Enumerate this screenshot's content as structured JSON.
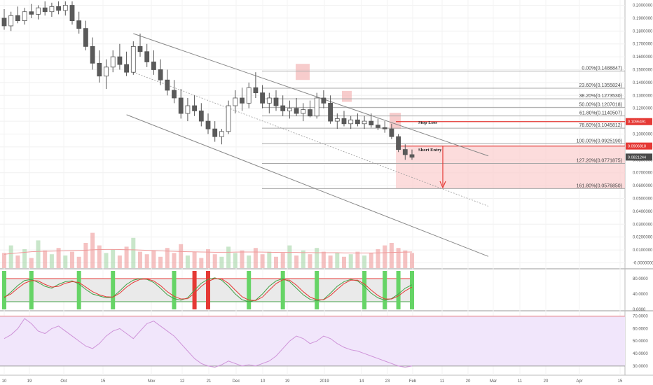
{
  "chart_data": {
    "type": "candlestick",
    "x_ticks": [
      "10",
      "19",
      "Oct",
      "15",
      "Nov",
      "12",
      "21",
      "Dec",
      "10",
      "19",
      "2019",
      "14",
      "23",
      "Feb",
      "11",
      "20",
      "Mar",
      "11",
      "20",
      "Apr",
      "15"
    ],
    "price_axis": {
      "ticks": [
        "0.2000000",
        "0.1900000",
        "0.1800000",
        "0.1700000",
        "0.1600000",
        "0.1500000",
        "0.1400000",
        "0.1300000",
        "0.1200000",
        "0.1100000",
        "0.1000000",
        "0.0900000",
        "0.0800000",
        "0.0700000",
        "0.0600000",
        "0.0500000",
        "0.0400000",
        "0.0300000",
        "0.0200000",
        "0.0100000",
        "-0.0000000"
      ],
      "ylim": [
        -0.003,
        0.203
      ]
    },
    "fib_levels": [
      {
        "label": "0.00%(0.1488847)",
        "value": 0.1488847
      },
      {
        "label": "23.60%(0.1355824)",
        "value": 0.1355824
      },
      {
        "label": "38.20%(0.1273530)",
        "value": 0.127353
      },
      {
        "label": "50.00%(0.1207018)",
        "value": 0.1207018
      },
      {
        "label": "61.80%(0.1140507)",
        "value": 0.1140507
      },
      {
        "label": "78.60%(0.1045812)",
        "value": 0.1045812
      },
      {
        "label": "100.00%(0.0925190)",
        "value": 0.092519
      },
      {
        "label": "127.20%(0.0771875)",
        "value": 0.0771875
      },
      {
        "label": "161.80%(0.0576850)",
        "value": 0.057685
      }
    ],
    "price_tags": [
      {
        "label": "0.1096491",
        "value": 0.1096491,
        "color": "#e53935"
      },
      {
        "label": "0.0906818",
        "value": 0.0906818,
        "color": "#e53935"
      },
      {
        "label": "0.0821244",
        "value": 0.0821244,
        "color": "#4a4a4a"
      }
    ],
    "annotations": {
      "stop_loss": "Stop Loss",
      "short_entry": "Short Entry"
    },
    "candles": [
      {
        "o": 0.19,
        "h": 0.197,
        "l": 0.181,
        "c": 0.184
      },
      {
        "o": 0.184,
        "h": 0.195,
        "l": 0.18,
        "c": 0.192
      },
      {
        "o": 0.192,
        "h": 0.199,
        "l": 0.186,
        "c": 0.188
      },
      {
        "o": 0.188,
        "h": 0.198,
        "l": 0.185,
        "c": 0.195
      },
      {
        "o": 0.195,
        "h": 0.201,
        "l": 0.19,
        "c": 0.193
      },
      {
        "o": 0.193,
        "h": 0.2,
        "l": 0.189,
        "c": 0.198
      },
      {
        "o": 0.198,
        "h": 0.203,
        "l": 0.192,
        "c": 0.195
      },
      {
        "o": 0.195,
        "h": 0.202,
        "l": 0.191,
        "c": 0.199
      },
      {
        "o": 0.199,
        "h": 0.203,
        "l": 0.193,
        "c": 0.196
      },
      {
        "o": 0.196,
        "h": 0.203,
        "l": 0.192,
        "c": 0.2
      },
      {
        "o": 0.2,
        "h": 0.203,
        "l": 0.185,
        "c": 0.188
      },
      {
        "o": 0.188,
        "h": 0.195,
        "l": 0.178,
        "c": 0.182
      },
      {
        "o": 0.182,
        "h": 0.188,
        "l": 0.165,
        "c": 0.168
      },
      {
        "o": 0.168,
        "h": 0.175,
        "l": 0.15,
        "c": 0.155
      },
      {
        "o": 0.155,
        "h": 0.165,
        "l": 0.14,
        "c": 0.145
      },
      {
        "o": 0.145,
        "h": 0.158,
        "l": 0.135,
        "c": 0.152
      },
      {
        "o": 0.152,
        "h": 0.165,
        "l": 0.148,
        "c": 0.16
      },
      {
        "o": 0.16,
        "h": 0.17,
        "l": 0.15,
        "c": 0.154
      },
      {
        "o": 0.154,
        "h": 0.164,
        "l": 0.145,
        "c": 0.148
      },
      {
        "o": 0.148,
        "h": 0.172,
        "l": 0.146,
        "c": 0.168
      },
      {
        "o": 0.168,
        "h": 0.178,
        "l": 0.16,
        "c": 0.164
      },
      {
        "o": 0.164,
        "h": 0.17,
        "l": 0.152,
        "c": 0.156
      },
      {
        "o": 0.156,
        "h": 0.165,
        "l": 0.146,
        "c": 0.15
      },
      {
        "o": 0.15,
        "h": 0.158,
        "l": 0.138,
        "c": 0.142
      },
      {
        "o": 0.142,
        "h": 0.15,
        "l": 0.13,
        "c": 0.134
      },
      {
        "o": 0.134,
        "h": 0.142,
        "l": 0.124,
        "c": 0.128
      },
      {
        "o": 0.128,
        "h": 0.135,
        "l": 0.112,
        "c": 0.116
      },
      {
        "o": 0.116,
        "h": 0.128,
        "l": 0.11,
        "c": 0.122
      },
      {
        "o": 0.122,
        "h": 0.13,
        "l": 0.114,
        "c": 0.118
      },
      {
        "o": 0.118,
        "h": 0.124,
        "l": 0.106,
        "c": 0.11
      },
      {
        "o": 0.11,
        "h": 0.116,
        "l": 0.1,
        "c": 0.104
      },
      {
        "o": 0.104,
        "h": 0.11,
        "l": 0.094,
        "c": 0.098
      },
      {
        "o": 0.098,
        "h": 0.104,
        "l": 0.092,
        "c": 0.102
      },
      {
        "o": 0.102,
        "h": 0.126,
        "l": 0.1,
        "c": 0.122
      },
      {
        "o": 0.122,
        "h": 0.134,
        "l": 0.116,
        "c": 0.128
      },
      {
        "o": 0.128,
        "h": 0.136,
        "l": 0.118,
        "c": 0.124
      },
      {
        "o": 0.124,
        "h": 0.14,
        "l": 0.12,
        "c": 0.136
      },
      {
        "o": 0.136,
        "h": 0.148,
        "l": 0.128,
        "c": 0.132
      },
      {
        "o": 0.132,
        "h": 0.138,
        "l": 0.12,
        "c": 0.124
      },
      {
        "o": 0.124,
        "h": 0.132,
        "l": 0.116,
        "c": 0.128
      },
      {
        "o": 0.128,
        "h": 0.134,
        "l": 0.118,
        "c": 0.122
      },
      {
        "o": 0.122,
        "h": 0.13,
        "l": 0.114,
        "c": 0.118
      },
      {
        "o": 0.118,
        "h": 0.126,
        "l": 0.112,
        "c": 0.12
      },
      {
        "o": 0.12,
        "h": 0.128,
        "l": 0.114,
        "c": 0.116
      },
      {
        "o": 0.116,
        "h": 0.124,
        "l": 0.11,
        "c": 0.119
      },
      {
        "o": 0.119,
        "h": 0.126,
        "l": 0.113,
        "c": 0.114
      },
      {
        "o": 0.114,
        "h": 0.132,
        "l": 0.112,
        "c": 0.128
      },
      {
        "o": 0.128,
        "h": 0.134,
        "l": 0.12,
        "c": 0.124
      },
      {
        "o": 0.124,
        "h": 0.13,
        "l": 0.108,
        "c": 0.11
      },
      {
        "o": 0.11,
        "h": 0.116,
        "l": 0.104,
        "c": 0.112
      },
      {
        "o": 0.112,
        "h": 0.118,
        "l": 0.106,
        "c": 0.108
      },
      {
        "o": 0.108,
        "h": 0.114,
        "l": 0.104,
        "c": 0.111
      },
      {
        "o": 0.111,
        "h": 0.116,
        "l": 0.106,
        "c": 0.108
      },
      {
        "o": 0.108,
        "h": 0.114,
        "l": 0.104,
        "c": 0.11
      },
      {
        "o": 0.11,
        "h": 0.116,
        "l": 0.105,
        "c": 0.107
      },
      {
        "o": 0.107,
        "h": 0.112,
        "l": 0.103,
        "c": 0.105
      },
      {
        "o": 0.105,
        "h": 0.11,
        "l": 0.101,
        "c": 0.104
      },
      {
        "o": 0.104,
        "h": 0.108,
        "l": 0.096,
        "c": 0.098
      },
      {
        "o": 0.098,
        "h": 0.1,
        "l": 0.086,
        "c": 0.088
      },
      {
        "o": 0.088,
        "h": 0.092,
        "l": 0.08,
        "c": 0.084
      },
      {
        "o": 0.084,
        "h": 0.088,
        "l": 0.08,
        "c": 0.082
      }
    ],
    "volume": [
      0.012,
      0.018,
      0.01,
      0.015,
      0.008,
      0.022,
      0.014,
      0.011,
      0.016,
      0.01,
      0.013,
      0.009,
      0.02,
      0.028,
      0.018,
      0.012,
      0.015,
      0.01,
      0.017,
      0.024,
      0.013,
      0.011,
      0.014,
      0.009,
      0.016,
      0.012,
      0.019,
      0.01,
      0.013,
      0.008,
      0.015,
      0.011,
      0.009,
      0.017,
      0.012,
      0.014,
      0.01,
      0.016,
      0.011,
      0.013,
      0.009,
      0.012,
      0.018,
      0.01,
      0.014,
      0.011,
      0.016,
      0.013,
      0.01,
      0.012,
      0.009,
      0.011,
      0.013,
      0.01,
      0.012,
      0.015,
      0.018,
      0.02,
      0.016,
      0.014,
      0.012
    ],
    "volume_ma": [
      0.011,
      0.0115,
      0.012,
      0.0125,
      0.013,
      0.0132,
      0.0134,
      0.0135,
      0.0136,
      0.0138,
      0.0139,
      0.014,
      0.0142,
      0.0145,
      0.0147,
      0.0148,
      0.0148,
      0.0147,
      0.0146,
      0.0145,
      0.0143,
      0.0141,
      0.0139,
      0.0137,
      0.0135,
      0.0133,
      0.0131,
      0.013,
      0.0129,
      0.0128,
      0.0127,
      0.0126,
      0.0126,
      0.0126,
      0.0127,
      0.0128,
      0.0128,
      0.0128,
      0.0127,
      0.0126,
      0.0125,
      0.0124,
      0.0124,
      0.0124,
      0.0123,
      0.0123,
      0.0122,
      0.0122,
      0.0122,
      0.0122,
      0.0121,
      0.0121,
      0.012,
      0.012,
      0.012,
      0.0121,
      0.0122,
      0.0124,
      0.0126,
      0.0127,
      0.0128
    ],
    "stoch": {
      "ticks": [
        "80.0000",
        "40.0000",
        "0.0000"
      ],
      "ylim": [
        0,
        100
      ],
      "upper": 80,
      "lower": 20,
      "k": [
        30,
        45,
        62,
        75,
        78,
        70,
        60,
        55,
        65,
        72,
        74,
        66,
        52,
        40,
        35,
        30,
        32,
        48,
        65,
        76,
        80,
        78,
        70,
        55,
        38,
        28,
        24,
        30,
        50,
        68,
        78,
        82,
        76,
        60,
        40,
        25,
        20,
        24,
        40,
        60,
        74,
        80,
        72,
        55,
        38,
        26,
        22,
        26,
        42,
        60,
        72,
        78,
        74,
        60,
        42,
        30,
        24,
        28,
        40,
        55,
        64
      ],
      "d": [
        32,
        40,
        55,
        68,
        75,
        74,
        65,
        58,
        60,
        68,
        72,
        70,
        58,
        46,
        38,
        33,
        32,
        42,
        58,
        70,
        78,
        79,
        74,
        62,
        46,
        34,
        27,
        28,
        42,
        60,
        73,
        80,
        79,
        68,
        50,
        33,
        24,
        23,
        32,
        50,
        67,
        77,
        76,
        63,
        46,
        32,
        25,
        25,
        36,
        52,
        67,
        76,
        76,
        66,
        50,
        36,
        27,
        27,
        35,
        48,
        58
      ],
      "bars": [
        {
          "i": 0,
          "color": "green"
        },
        {
          "i": 4,
          "color": "green"
        },
        {
          "i": 11,
          "color": "green"
        },
        {
          "i": 16,
          "color": "green"
        },
        {
          "i": 25,
          "color": "green"
        },
        {
          "i": 28,
          "color": "red"
        },
        {
          "i": 30,
          "color": "red"
        },
        {
          "i": 36,
          "color": "green"
        },
        {
          "i": 41,
          "color": "green"
        },
        {
          "i": 46,
          "color": "green"
        },
        {
          "i": 53,
          "color": "green"
        },
        {
          "i": 56,
          "color": "green"
        },
        {
          "i": 58,
          "color": "green"
        },
        {
          "i": 60,
          "color": "green"
        }
      ]
    },
    "rsi": {
      "ticks": [
        "70.0000",
        "60.0000",
        "50.0000",
        "40.0000",
        "30.0000"
      ],
      "ylim": [
        26,
        72
      ],
      "upper": 70,
      "lower": 30,
      "values": [
        52,
        55,
        60,
        68,
        64,
        58,
        56,
        60,
        62,
        58,
        54,
        50,
        46,
        44,
        48,
        54,
        58,
        60,
        56,
        52,
        58,
        64,
        66,
        62,
        58,
        54,
        48,
        42,
        36,
        32,
        30,
        29,
        31,
        34,
        32,
        30,
        31,
        30,
        32,
        34,
        38,
        44,
        50,
        54,
        52,
        48,
        50,
        54,
        52,
        48,
        45,
        43,
        42,
        40,
        38,
        36,
        34,
        32,
        30,
        29,
        30
      ]
    }
  }
}
